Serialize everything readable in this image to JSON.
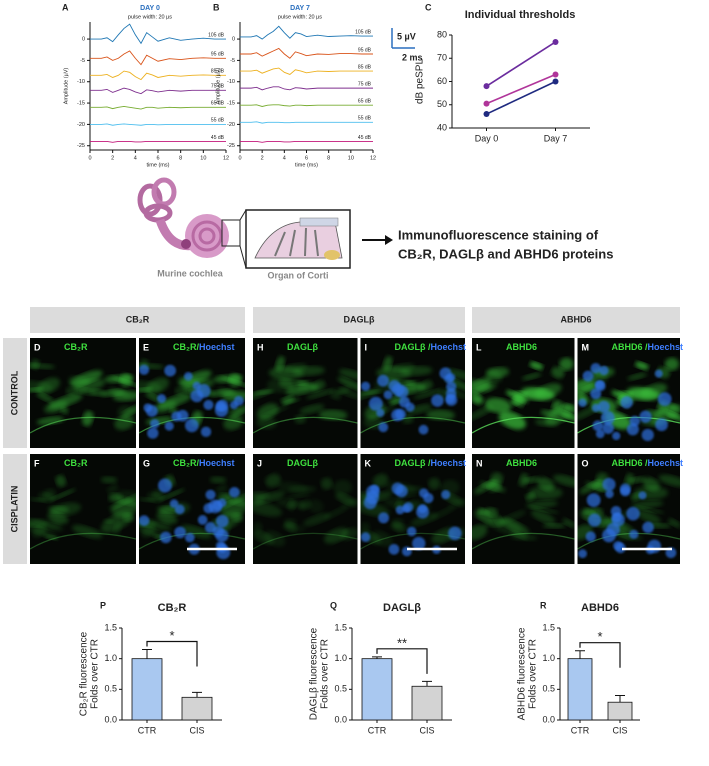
{
  "chart_data": [
    {
      "type": "line",
      "panel": "A",
      "title": "DAY 0",
      "title_color": "#2a6fbf",
      "annotation": "pulse width: 20 µs",
      "xlabel": "time (ms)",
      "ylabel": "Amplitude (µV)",
      "x": [
        0,
        1,
        1.5,
        2,
        2.5,
        3,
        3.5,
        4,
        4.5,
        5,
        5.5,
        6,
        7,
        8,
        9,
        10,
        11,
        12
      ],
      "xlim": [
        0,
        12
      ],
      "xticks": [
        0,
        2,
        4,
        6,
        8,
        10,
        12
      ],
      "ylim": [
        -26,
        4
      ],
      "yticks": [
        0,
        -5,
        -10,
        -15,
        -20,
        -25
      ],
      "series": [
        {
          "name": "105 dB",
          "color": "#1f77b4",
          "values": [
            0,
            0,
            0.3,
            -0.6,
            1,
            2.5,
            3.5,
            1,
            -1,
            1.5,
            0.5,
            -0.5,
            0.3,
            -0.3,
            0,
            0.2,
            0,
            0
          ]
        },
        {
          "name": "95 dB",
          "color": "#d95319",
          "values": [
            -4.5,
            -4.5,
            -4.2,
            -5,
            -4.5,
            -3.5,
            -2.8,
            -4.5,
            -6,
            -3.8,
            -4.5,
            -5.2,
            -4.6,
            -4.8,
            -4.5,
            -4.4,
            -4.5,
            -4.5
          ]
        },
        {
          "name": "85 dB",
          "color": "#edb120",
          "values": [
            -8.5,
            -8.5,
            -8.3,
            -9,
            -8.5,
            -7.5,
            -7.8,
            -8.8,
            -9.5,
            -8,
            -8.4,
            -9,
            -8.5,
            -8.7,
            -8.5,
            -8.4,
            -8.5,
            -8.5
          ]
        },
        {
          "name": "75 dB",
          "color": "#7e2f8e",
          "values": [
            -12,
            -12,
            -11.8,
            -12.5,
            -12,
            -11.5,
            -11.8,
            -12.4,
            -12.8,
            -11.9,
            -12.1,
            -12.4,
            -12,
            -12.2,
            -12,
            -12,
            -12,
            -12
          ]
        },
        {
          "name": "65 dB",
          "color": "#77ac30",
          "values": [
            -16,
            -16,
            -15.9,
            -16.3,
            -16,
            -15.8,
            -16,
            -16.2,
            -16.4,
            -16,
            -16,
            -16.2,
            -16,
            -16.1,
            -16,
            -16,
            -16,
            -16
          ]
        },
        {
          "name": "55 dB",
          "color": "#4dbeee",
          "values": [
            -20,
            -20,
            -19.9,
            -20.2,
            -20,
            -19.9,
            -20,
            -20.1,
            -20.2,
            -20,
            -20,
            -20.1,
            -20,
            -20,
            -20,
            -20,
            -20,
            -20
          ]
        },
        {
          "name": "45 dB",
          "color": "#c2187a",
          "values": [
            -24,
            -24,
            -24,
            -24.2,
            -24,
            -24,
            -24,
            -24.1,
            -24.1,
            -24,
            -24,
            -24,
            -24,
            -24,
            -24,
            -24,
            -24,
            -24
          ]
        }
      ]
    },
    {
      "type": "line",
      "panel": "B",
      "title": "DAY 7",
      "title_color": "#2a6fbf",
      "annotation": "pulse width: 20 µs",
      "xlabel": "time (ms)",
      "ylabel": "Amplitude (µV)",
      "x": [
        0,
        1,
        1.5,
        2,
        2.5,
        3,
        3.5,
        4,
        4.5,
        5,
        5.5,
        6,
        7,
        8,
        9,
        10,
        11,
        12
      ],
      "xlim": [
        0,
        12
      ],
      "xticks": [
        0,
        2,
        4,
        6,
        8,
        10,
        12
      ],
      "ylim": [
        -26,
        4
      ],
      "yticks": [
        0,
        -5,
        -10,
        -15,
        -20,
        -25
      ],
      "series": [
        {
          "name": "105 dB",
          "color": "#1f77b4",
          "values": [
            0.5,
            0.5,
            0.8,
            0,
            1,
            1.8,
            3,
            1.5,
            0.2,
            1.5,
            1.2,
            0.6,
            0.9,
            0.6,
            0.7,
            0.8,
            0.7,
            0.7
          ]
        },
        {
          "name": "95 dB",
          "color": "#d95319",
          "values": [
            -3.5,
            -3.5,
            -3.2,
            -4,
            -3.4,
            -2.8,
            -2.2,
            -3.5,
            -4.5,
            -3,
            -3.4,
            -3.9,
            -3.5,
            -3.6,
            -3.4,
            -3.4,
            -3.5,
            -3.5
          ]
        },
        {
          "name": "85 dB",
          "color": "#edb120",
          "values": [
            -7.5,
            -7.5,
            -7.3,
            -8,
            -7.5,
            -7,
            -6.8,
            -7.8,
            -8.3,
            -7.2,
            -7.5,
            -7.9,
            -7.5,
            -7.6,
            -7.5,
            -7.5,
            -7.5,
            -7.5
          ]
        },
        {
          "name": "75 dB",
          "color": "#7e2f8e",
          "values": [
            -11.5,
            -11.5,
            -11.3,
            -11.9,
            -11.5,
            -11.2,
            -11.2,
            -11.7,
            -11.9,
            -11.4,
            -11.5,
            -11.7,
            -11.5,
            -11.5,
            -11.5,
            -11.5,
            -11.5,
            -11.5
          ]
        },
        {
          "name": "65 dB",
          "color": "#77ac30",
          "values": [
            -15.5,
            -15.5,
            -15.4,
            -15.8,
            -15.5,
            -15.4,
            -15.4,
            -15.6,
            -15.7,
            -15.5,
            -15.5,
            -15.6,
            -15.5,
            -15.5,
            -15.5,
            -15.5,
            -15.5,
            -15.5
          ]
        },
        {
          "name": "55 dB",
          "color": "#4dbeee",
          "values": [
            -19.5,
            -19.5,
            -19.4,
            -19.7,
            -19.5,
            -19.5,
            -19.5,
            -19.6,
            -19.6,
            -19.5,
            -19.5,
            -19.5,
            -19.5,
            -19.5,
            -19.5,
            -19.5,
            -19.5,
            -19.5
          ]
        },
        {
          "name": "45 dB",
          "color": "#c2187a",
          "values": [
            -24,
            -24,
            -24,
            -24.2,
            -24,
            -24,
            -24,
            -24.1,
            -24.1,
            -24,
            -24,
            -24,
            -24,
            -24,
            -24,
            -24,
            -24,
            -24
          ]
        }
      ]
    },
    {
      "type": "line",
      "panel": "C",
      "title": "Individual thresholds",
      "ylabel": "dB peSPL",
      "categories": [
        "Day 0",
        "Day 7"
      ],
      "ylim": [
        40,
        80
      ],
      "yticks": [
        40,
        50,
        60,
        70,
        80
      ],
      "markers": true,
      "series": [
        {
          "color": "#b0359a",
          "values": [
            50.5,
            63
          ]
        },
        {
          "color": "#1f2a80",
          "values": [
            46,
            60
          ]
        },
        {
          "color": "#6b2c9e",
          "values": [
            58,
            77
          ]
        }
      ]
    },
    {
      "type": "bar",
      "panel": "P",
      "title": "CB₂R",
      "ylabel": [
        "CB₂R fluorescence",
        "Folds over CTR"
      ],
      "categories": [
        "CTR",
        "CIS"
      ],
      "values": [
        1.0,
        0.37
      ],
      "errors": [
        0.15,
        0.08
      ],
      "colors": [
        "#a9c8f0",
        "#d3d3d3"
      ],
      "ylim": [
        0,
        1.5
      ],
      "yticks": [
        {
          "value": 0,
          "label": "0.0"
        },
        {
          "value": 0.5,
          "label": "0.5"
        },
        {
          "value": 1,
          "label": "1.0"
        },
        {
          "value": 1.5,
          "label": "1.5"
        }
      ],
      "significance": "*"
    },
    {
      "type": "bar",
      "panel": "Q",
      "title": "DAGLβ",
      "ylabel": [
        "DAGLβ fluorescence",
        "Folds over CTR"
      ],
      "categories": [
        "CTR",
        "CIS"
      ],
      "values": [
        1.0,
        0.55
      ],
      "errors": [
        0.03,
        0.08
      ],
      "colors": [
        "#a9c8f0",
        "#d3d3d3"
      ],
      "ylim": [
        0,
        1.5
      ],
      "yticks": [
        {
          "value": 0,
          "label": "0.0"
        },
        {
          "value": 0.5,
          "label": "0.5"
        },
        {
          "value": 1,
          "label": "1.0"
        },
        {
          "value": 1.5,
          "label": "1.5"
        }
      ],
      "significance": "**"
    },
    {
      "type": "bar",
      "panel": "R",
      "title": "ABHD6",
      "ylabel": [
        "ABHD6 fluorescence",
        "Folds over CTR"
      ],
      "categories": [
        "CTR",
        "CIS"
      ],
      "values": [
        1.0,
        0.29
      ],
      "errors": [
        0.13,
        0.11
      ],
      "colors": [
        "#a9c8f0",
        "#d3d3d3"
      ],
      "ylim": [
        0,
        1.5
      ],
      "yticks": [
        {
          "value": 0,
          "label": "0.0"
        },
        {
          "value": 0.5,
          "label": "0.5"
        },
        {
          "value": 1,
          "label": "1.0"
        },
        {
          "value": 1.5,
          "label": "1.5"
        }
      ],
      "significance": "*"
    }
  ],
  "figure": {
    "scale_bar": {
      "y_label": "5 µV",
      "x_label": "2 ms"
    },
    "diagram": {
      "cochlea_label": "Murine cochlea",
      "organ_label": "Organ of Corti",
      "caption": [
        "Immunofluorescence staining of",
        "CB₂R, DAGLβ and ABHD6 proteins"
      ]
    },
    "columns": [
      "CB₂R",
      "DAGLβ",
      "ABHD6"
    ],
    "rows": [
      "CONTROL",
      "CISPLATIN"
    ],
    "panels": [
      {
        "letter": "D",
        "marker": "CB₂R"
      },
      {
        "letter": "E",
        "marker": "CB₂R/",
        "counterstain": "Hoechst"
      },
      {
        "letter": "H",
        "marker": "DAGLβ"
      },
      {
        "letter": "I",
        "marker": "DAGLβ /",
        "counterstain": "Hoechst"
      },
      {
        "letter": "L",
        "marker": "ABHD6"
      },
      {
        "letter": "M",
        "marker": "ABHD6 /",
        "counterstain": "Hoechst"
      },
      {
        "letter": "F",
        "marker": "CB₂R"
      },
      {
        "letter": "G",
        "marker": "CB₂R/",
        "counterstain": "Hoechst"
      },
      {
        "letter": "J",
        "marker": "DAGLβ"
      },
      {
        "letter": "K",
        "marker": "DAGLβ /",
        "counterstain": "Hoechst"
      },
      {
        "letter": "N",
        "marker": "ABHD6"
      },
      {
        "letter": "O",
        "marker": "ABHD6 /",
        "counterstain": "Hoechst"
      }
    ]
  }
}
